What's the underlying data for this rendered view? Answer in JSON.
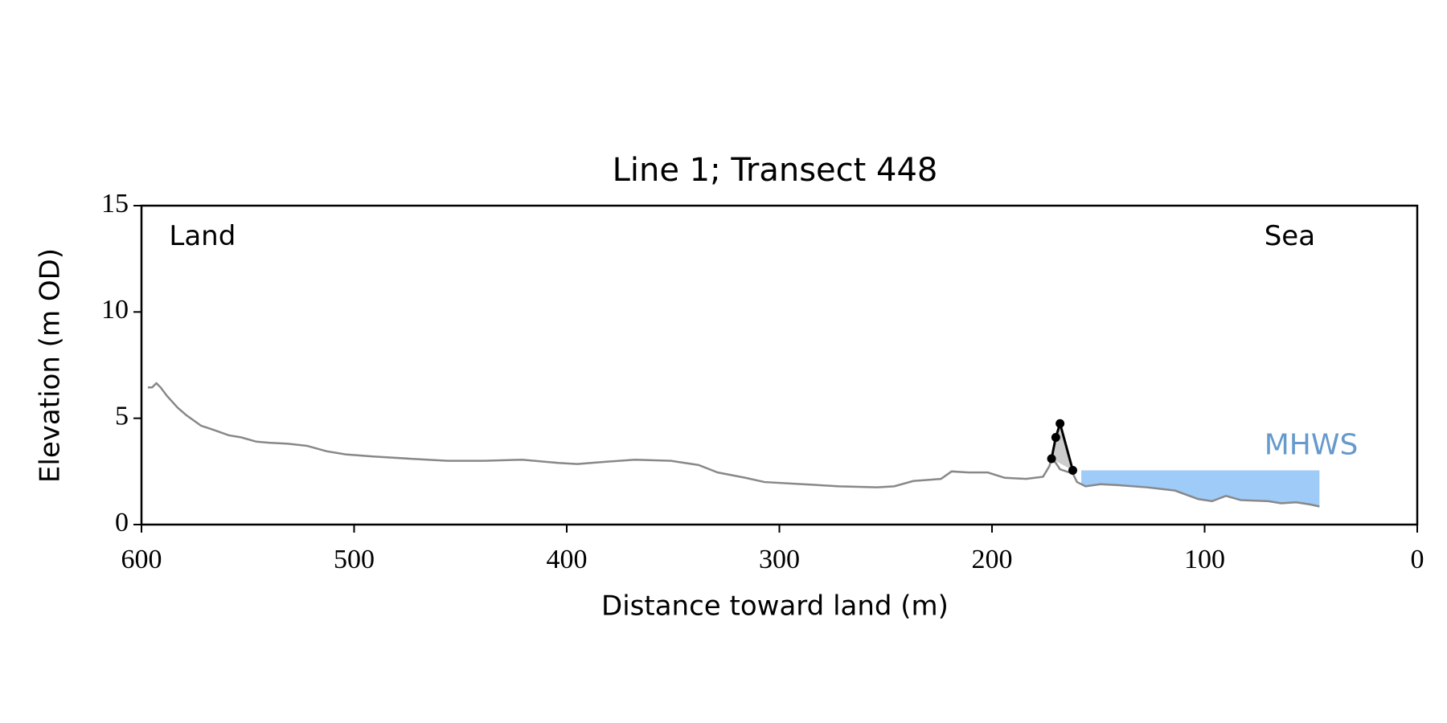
{
  "chart_data": {
    "type": "line",
    "title": "Line 1; Transect 448",
    "xlabel": "Distance toward land (m)",
    "ylabel": "Elevation (m OD)",
    "xlim": [
      600,
      0
    ],
    "xticks": [
      600,
      500,
      400,
      300,
      200,
      100,
      0
    ],
    "ylim": [
      0,
      15
    ],
    "yticks": [
      0,
      5,
      10,
      15
    ],
    "grid": false,
    "series": [
      {
        "color": "#888888",
        "marker": false,
        "x": [
          597,
          595,
          593,
          591,
          588,
          583,
          579,
          572,
          566,
          559,
          553,
          546,
          540,
          531,
          522,
          513,
          504,
          491,
          474,
          456,
          439,
          421,
          404,
          395,
          382,
          368,
          351,
          338,
          329,
          316,
          307,
          289,
          272,
          254,
          246,
          237,
          224,
          219,
          211,
          202,
          194,
          184,
          176,
          173,
          172,
          170,
          168,
          162,
          160,
          156,
          149,
          140,
          127,
          114,
          103,
          96.5,
          90,
          83,
          70,
          64,
          57,
          50.5,
          46
        ],
        "values": [
          6.45,
          6.45,
          6.65,
          6.45,
          6.05,
          5.5,
          5.15,
          4.65,
          4.45,
          4.2,
          4.1,
          3.9,
          3.85,
          3.8,
          3.7,
          3.45,
          3.3,
          3.2,
          3.1,
          3.0,
          3.0,
          3.05,
          2.9,
          2.85,
          2.95,
          3.05,
          3.0,
          2.8,
          2.45,
          2.2,
          2.0,
          1.9,
          1.8,
          1.75,
          1.8,
          2.05,
          2.15,
          2.5,
          2.45,
          2.45,
          2.2,
          2.15,
          2.25,
          2.75,
          3.1,
          2.9,
          2.6,
          2.4,
          2.0,
          1.8,
          1.9,
          1.85,
          1.75,
          1.6,
          1.2,
          1.1,
          1.35,
          1.15,
          1.1,
          1.0,
          1.05,
          0.95,
          0.85
        ]
      },
      {
        "color": "#000000",
        "marker": true,
        "fill": "#cccccc",
        "x": [
          172,
          170,
          168,
          162
        ],
        "values": [
          3.1,
          4.1,
          4.75,
          2.55
        ]
      }
    ],
    "mhws": {
      "label": "MHWS",
      "value": 2.55,
      "x": [
        158,
        46
      ],
      "color": "#9ecbf7",
      "text_color": "#6699cc"
    },
    "annotations": [
      {
        "text": "Land",
        "x": 587,
        "y": 13.5
      },
      {
        "text": "Sea",
        "x": 48,
        "y": 13.5
      }
    ]
  }
}
